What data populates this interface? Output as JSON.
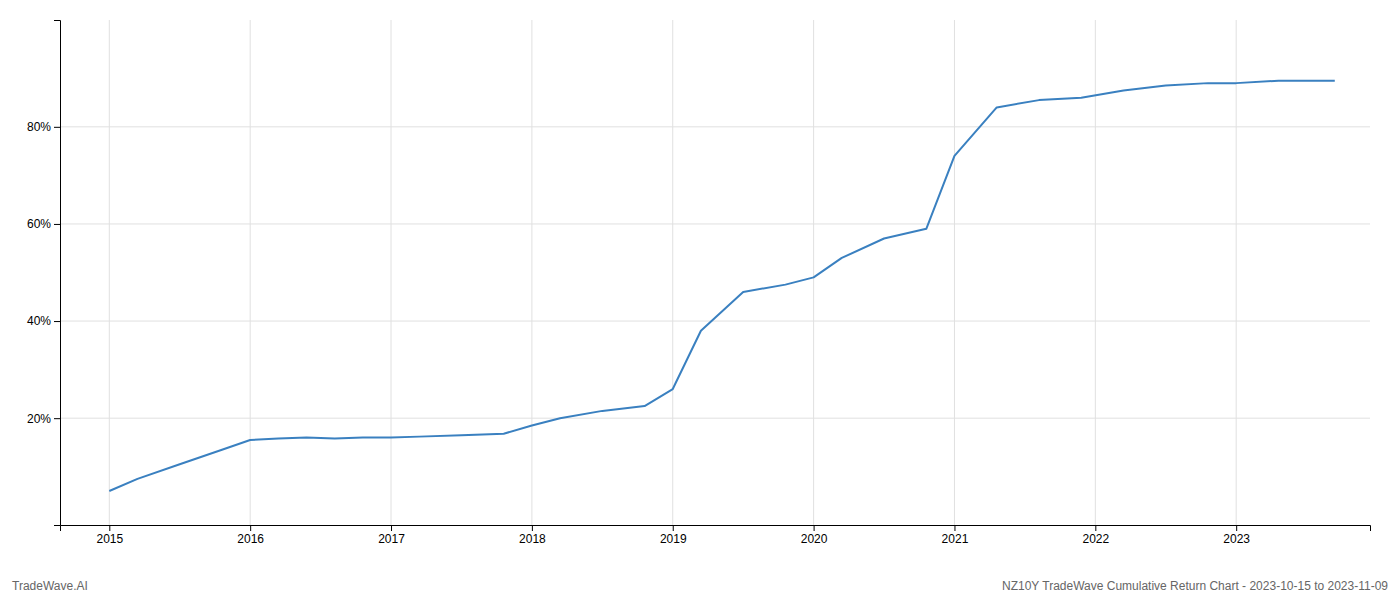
{
  "chart_data": {
    "type": "line",
    "x": [
      2015.0,
      2015.2,
      2015.5,
      2015.8,
      2016.0,
      2016.2,
      2016.4,
      2016.6,
      2016.8,
      2017.0,
      2017.2,
      2017.5,
      2017.8,
      2018.0,
      2018.2,
      2018.5,
      2018.8,
      2019.0,
      2019.2,
      2019.5,
      2019.8,
      2020.0,
      2020.2,
      2020.5,
      2020.8,
      2021.0,
      2021.3,
      2021.6,
      2021.9,
      2022.2,
      2022.5,
      2022.8,
      2023.0,
      2023.3,
      2023.7
    ],
    "values": [
      5.0,
      7.5,
      10.5,
      13.5,
      15.5,
      15.8,
      16.0,
      15.8,
      16.0,
      16.0,
      16.2,
      16.5,
      16.8,
      18.5,
      20.0,
      21.5,
      22.5,
      26.0,
      38.0,
      46.0,
      47.5,
      49.0,
      53.0,
      57.0,
      59.0,
      74.0,
      84.0,
      85.5,
      86.0,
      87.5,
      88.5,
      89.0,
      89.0,
      89.5,
      89.5
    ],
    "color": "#3a80c0",
    "xlim": [
      2014.65,
      2023.95
    ],
    "xticks": [
      2015,
      2016,
      2017,
      2018,
      2019,
      2020,
      2021,
      2022,
      2023
    ],
    "ylim": [
      -2,
      102
    ],
    "yticks": [
      {
        "value": 20,
        "label": "20%"
      },
      {
        "value": 40,
        "label": "40%"
      },
      {
        "value": 60,
        "label": "60%"
      },
      {
        "value": 80,
        "label": "80%"
      }
    ],
    "grid": true,
    "annotations": [
      "TradeWave.AI",
      "NZ10Y TradeWave Cumulative Return Chart - 2023-10-15 to 2023-11-09"
    ]
  }
}
